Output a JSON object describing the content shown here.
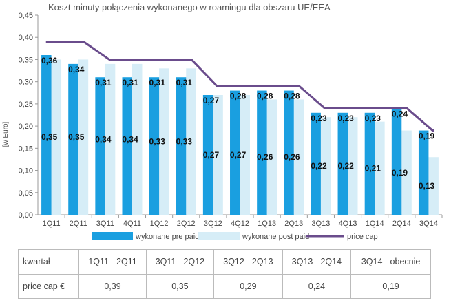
{
  "chart_data": {
    "type": "bar",
    "title": "Koszt minuty połączenia wykonanego w roamingu dla obszaru UE/EEA",
    "ylabel": "[w Euro]",
    "xlabel": "",
    "ylim": [
      0,
      0.45
    ],
    "yticks": [
      "0,00",
      "0,05",
      "0,10",
      "0,15",
      "0,20",
      "0,25",
      "0,30",
      "0,35",
      "0,40",
      "0,45"
    ],
    "categories": [
      "1Q11",
      "2Q11",
      "3Q11",
      "4Q11",
      "1Q12",
      "2Q12",
      "3Q12",
      "4Q12",
      "1Q13",
      "2Q13",
      "3Q13",
      "4Q13",
      "1Q14",
      "2Q14",
      "3Q14"
    ],
    "series": [
      {
        "name": "wykonane pre paid",
        "color": "#1a9fe0",
        "values": [
          0.36,
          0.34,
          0.31,
          0.31,
          0.31,
          0.31,
          0.27,
          0.28,
          0.28,
          0.28,
          0.23,
          0.23,
          0.23,
          0.24,
          0.19
        ],
        "labels": [
          "0,36",
          "0,34",
          "0,31",
          "0,31",
          "0,31",
          "0,31",
          "0,27",
          "0,28",
          "0,28",
          "0,28",
          "0,23",
          "0,23",
          "0,23",
          "0,24",
          "0,19"
        ]
      },
      {
        "name": "wykonane post paid",
        "color": "#d6edf7",
        "values": [
          0.35,
          0.35,
          0.34,
          0.34,
          0.33,
          0.33,
          0.27,
          0.27,
          0.26,
          0.26,
          0.22,
          0.22,
          0.21,
          0.19,
          0.13
        ],
        "labels": [
          "0,35",
          "0,35",
          "0,34",
          "0,34",
          "0,33",
          "0,33",
          "0,27",
          "0,27",
          "0,26",
          "0,26",
          "0,22",
          "0,22",
          "0,21",
          "0,19",
          "0,13"
        ]
      },
      {
        "name": "price cap",
        "color": "#6a4c8c",
        "type": "line",
        "values": [
          0.39,
          0.39,
          0.35,
          0.35,
          0.35,
          0.35,
          0.29,
          0.29,
          0.29,
          0.29,
          0.24,
          0.24,
          0.24,
          0.24,
          0.19
        ]
      }
    ],
    "legend_position": "bottom",
    "grid": false
  },
  "table": {
    "rows": [
      [
        "kwartał",
        "1Q11 - 2Q11",
        "3Q11 - 2Q12",
        "3Q12 - 2Q13",
        "3Q13 - 2Q14",
        "3Q14 - obecnie"
      ],
      [
        "price cap €",
        "0,39",
        "0,35",
        "0,29",
        "0,24",
        "0,19"
      ]
    ]
  }
}
